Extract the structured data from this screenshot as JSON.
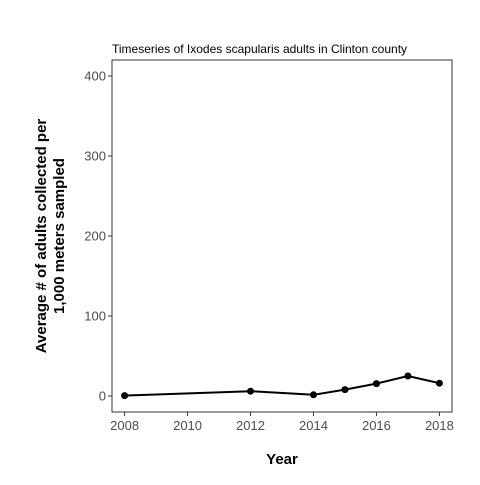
{
  "chart_data": {
    "type": "line",
    "title": "Timeseries of Ixodes scapularis adults in Clinton county",
    "xlabel": "Year",
    "ylabel_lines": [
      "Average # of adults collected per",
      "1,000 meters sampled"
    ],
    "x": [
      2008,
      2012,
      2014,
      2015,
      2016,
      2017,
      2018
    ],
    "y": [
      0.5,
      6,
      1.5,
      8,
      15.5,
      25,
      16
    ],
    "xlim": [
      2007.6,
      2018.4
    ],
    "ylim": [
      -20,
      420
    ],
    "x_ticks": [
      2008,
      2010,
      2012,
      2014,
      2016,
      2018
    ],
    "y_ticks": [
      0,
      100,
      200,
      300,
      400
    ],
    "grid": false,
    "legend": "none",
    "line_color": "#000000",
    "point_color": "#000000"
  }
}
